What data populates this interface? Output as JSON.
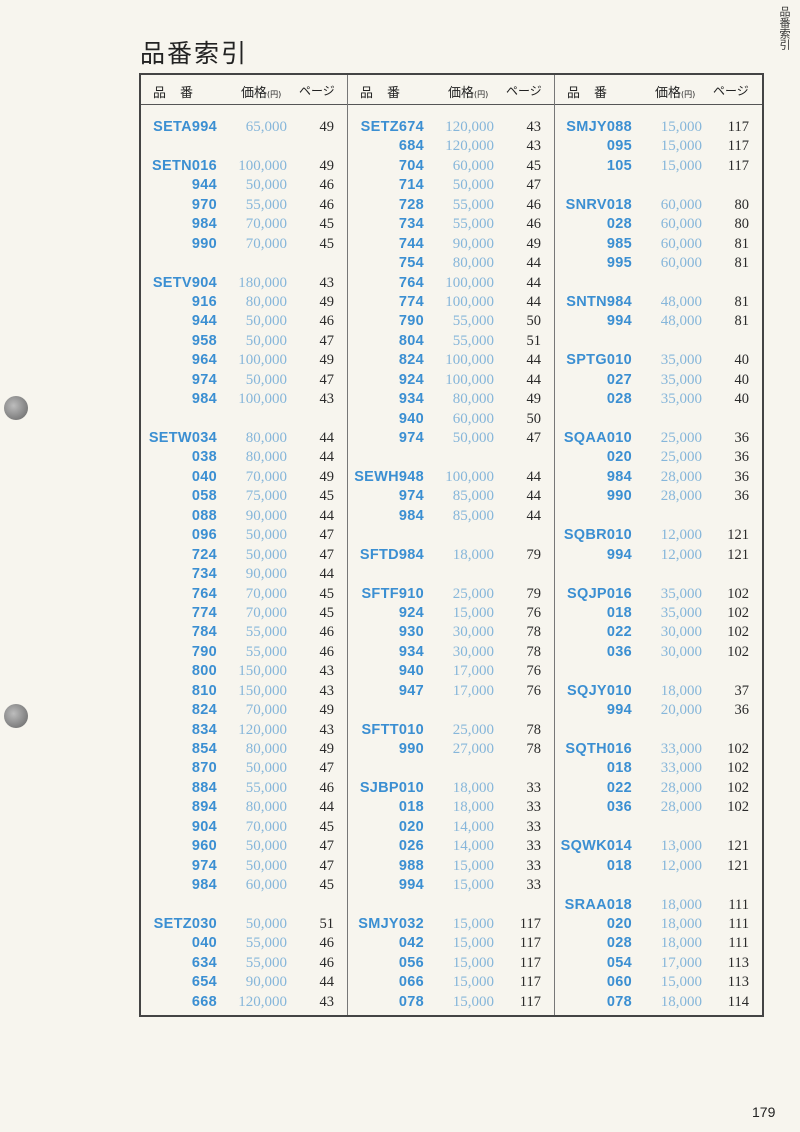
{
  "title": "品番索引",
  "side_label": "品番索引",
  "page_number": "179",
  "header": {
    "code": "品番",
    "price": "価格",
    "price_unit": "(円)",
    "page": "ページ"
  },
  "colors": {
    "code": "#3b8fd2",
    "price": "#86b6da",
    "page": "#2a2a2a"
  },
  "columns": [
    {
      "rows": [
        [
          "SETA994",
          "65,000",
          "49"
        ],
        [],
        [
          "SETN016",
          "100,000",
          "49"
        ],
        [
          "944",
          "50,000",
          "46"
        ],
        [
          "970",
          "55,000",
          "46"
        ],
        [
          "984",
          "70,000",
          "45"
        ],
        [
          "990",
          "70,000",
          "45"
        ],
        [],
        [
          "SETV904",
          "180,000",
          "43"
        ],
        [
          "916",
          "80,000",
          "49"
        ],
        [
          "944",
          "50,000",
          "46"
        ],
        [
          "958",
          "50,000",
          "47"
        ],
        [
          "964",
          "100,000",
          "49"
        ],
        [
          "974",
          "50,000",
          "47"
        ],
        [
          "984",
          "100,000",
          "43"
        ],
        [],
        [
          "SETW034",
          "80,000",
          "44"
        ],
        [
          "038",
          "80,000",
          "44"
        ],
        [
          "040",
          "70,000",
          "49"
        ],
        [
          "058",
          "75,000",
          "45"
        ],
        [
          "088",
          "90,000",
          "44"
        ],
        [
          "096",
          "50,000",
          "47"
        ],
        [
          "724",
          "50,000",
          "47"
        ],
        [
          "734",
          "90,000",
          "44"
        ],
        [
          "764",
          "70,000",
          "45"
        ],
        [
          "774",
          "70,000",
          "45"
        ],
        [
          "784",
          "55,000",
          "46"
        ],
        [
          "790",
          "55,000",
          "46"
        ],
        [
          "800",
          "150,000",
          "43"
        ],
        [
          "810",
          "150,000",
          "43"
        ],
        [
          "824",
          "70,000",
          "49"
        ],
        [
          "834",
          "120,000",
          "43"
        ],
        [
          "854",
          "80,000",
          "49"
        ],
        [
          "870",
          "50,000",
          "47"
        ],
        [
          "884",
          "55,000",
          "46"
        ],
        [
          "894",
          "80,000",
          "44"
        ],
        [
          "904",
          "70,000",
          "45"
        ],
        [
          "960",
          "50,000",
          "47"
        ],
        [
          "974",
          "50,000",
          "47"
        ],
        [
          "984",
          "60,000",
          "45"
        ],
        [],
        [
          "SETZ030",
          "50,000",
          "51"
        ],
        [
          "040",
          "55,000",
          "46"
        ],
        [
          "634",
          "55,000",
          "46"
        ],
        [
          "654",
          "90,000",
          "44"
        ],
        [
          "668",
          "120,000",
          "43"
        ]
      ]
    },
    {
      "rows": [
        [
          "SETZ674",
          "120,000",
          "43"
        ],
        [
          "684",
          "120,000",
          "43"
        ],
        [
          "704",
          "60,000",
          "45"
        ],
        [
          "714",
          "50,000",
          "47"
        ],
        [
          "728",
          "55,000",
          "46"
        ],
        [
          "734",
          "55,000",
          "46"
        ],
        [
          "744",
          "90,000",
          "49"
        ],
        [
          "754",
          "80,000",
          "44"
        ],
        [
          "764",
          "100,000",
          "44"
        ],
        [
          "774",
          "100,000",
          "44"
        ],
        [
          "790",
          "55,000",
          "50"
        ],
        [
          "804",
          "55,000",
          "51"
        ],
        [
          "824",
          "100,000",
          "44"
        ],
        [
          "924",
          "100,000",
          "44"
        ],
        [
          "934",
          "80,000",
          "49"
        ],
        [
          "940",
          "60,000",
          "50"
        ],
        [
          "974",
          "50,000",
          "47"
        ],
        [],
        [
          "SEWH948",
          "100,000",
          "44"
        ],
        [
          "974",
          "85,000",
          "44"
        ],
        [
          "984",
          "85,000",
          "44"
        ],
        [],
        [
          "SFTD984",
          "18,000",
          "79"
        ],
        [],
        [
          "SFTF910",
          "25,000",
          "79"
        ],
        [
          "924",
          "15,000",
          "76"
        ],
        [
          "930",
          "30,000",
          "78"
        ],
        [
          "934",
          "30,000",
          "78"
        ],
        [
          "940",
          "17,000",
          "76"
        ],
        [
          "947",
          "17,000",
          "76"
        ],
        [],
        [
          "SFTT010",
          "25,000",
          "78"
        ],
        [
          "990",
          "27,000",
          "78"
        ],
        [],
        [
          "SJBP010",
          "18,000",
          "33"
        ],
        [
          "018",
          "18,000",
          "33"
        ],
        [
          "020",
          "14,000",
          "33"
        ],
        [
          "026",
          "14,000",
          "33"
        ],
        [
          "988",
          "15,000",
          "33"
        ],
        [
          "994",
          "15,000",
          "33"
        ],
        [],
        [
          "SMJY032",
          "15,000",
          "117"
        ],
        [
          "042",
          "15,000",
          "117"
        ],
        [
          "056",
          "15,000",
          "117"
        ],
        [
          "066",
          "15,000",
          "117"
        ],
        [
          "078",
          "15,000",
          "117"
        ]
      ]
    },
    {
      "rows": [
        [
          "SMJY088",
          "15,000",
          "117"
        ],
        [
          "095",
          "15,000",
          "117"
        ],
        [
          "105",
          "15,000",
          "117"
        ],
        [],
        [
          "SNRV018",
          "60,000",
          "80"
        ],
        [
          "028",
          "60,000",
          "80"
        ],
        [
          "985",
          "60,000",
          "81"
        ],
        [
          "995",
          "60,000",
          "81"
        ],
        [],
        [
          "SNTN984",
          "48,000",
          "81"
        ],
        [
          "994",
          "48,000",
          "81"
        ],
        [],
        [
          "SPTG010",
          "35,000",
          "40"
        ],
        [
          "027",
          "35,000",
          "40"
        ],
        [
          "028",
          "35,000",
          "40"
        ],
        [],
        [
          "SQAA010",
          "25,000",
          "36"
        ],
        [
          "020",
          "25,000",
          "36"
        ],
        [
          "984",
          "28,000",
          "36"
        ],
        [
          "990",
          "28,000",
          "36"
        ],
        [],
        [
          "SQBR010",
          "12,000",
          "121"
        ],
        [
          "994",
          "12,000",
          "121"
        ],
        [],
        [
          "SQJP016",
          "35,000",
          "102"
        ],
        [
          "018",
          "35,000",
          "102"
        ],
        [
          "022",
          "30,000",
          "102"
        ],
        [
          "036",
          "30,000",
          "102"
        ],
        [],
        [
          "SQJY010",
          "18,000",
          "37"
        ],
        [
          "994",
          "20,000",
          "36"
        ],
        [],
        [
          "SQTH016",
          "33,000",
          "102"
        ],
        [
          "018",
          "33,000",
          "102"
        ],
        [
          "022",
          "28,000",
          "102"
        ],
        [
          "036",
          "28,000",
          "102"
        ],
        [],
        [
          "SQWK014",
          "13,000",
          "121"
        ],
        [
          "018",
          "12,000",
          "121"
        ],
        [],
        [
          "SRAA018",
          "18,000",
          "111"
        ],
        [
          "020",
          "18,000",
          "111"
        ],
        [
          "028",
          "18,000",
          "111"
        ],
        [
          "054",
          "17,000",
          "113"
        ],
        [
          "060",
          "15,000",
          "113"
        ],
        [
          "078",
          "18,000",
          "114"
        ]
      ]
    }
  ]
}
